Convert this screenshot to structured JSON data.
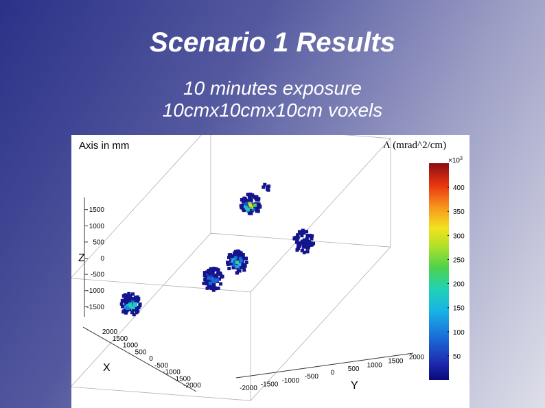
{
  "slide": {
    "title": "Scenario 1 Results",
    "subtitle_lines": [
      "10 minutes exposure",
      "10cmx10cmx10cm voxels"
    ]
  },
  "chart_data": {
    "type": "scatter3d",
    "axis_note": "Axis in mm",
    "color_title": "Λ (mrad^2/cm)",
    "color_multiplier": "×10",
    "color_multiplier_exp": "3",
    "x_axis": {
      "label": "X",
      "ticks": [
        2000,
        1500,
        1000,
        500,
        0,
        -500,
        -1000,
        -1500,
        -2000
      ],
      "range": [
        -2000,
        2000
      ]
    },
    "y_axis": {
      "label": "Y",
      "ticks": [
        -2000,
        -1500,
        -1000,
        -500,
        0,
        500,
        1000,
        1500,
        2000
      ],
      "range": [
        -2000,
        2000
      ]
    },
    "z_axis": {
      "label": "Z",
      "ticks": [
        1500,
        1000,
        500,
        0,
        -500,
        -1000,
        -1500
      ],
      "range": [
        -1800,
        1800
      ]
    },
    "colorbar": {
      "min": 0,
      "max": 450,
      "ticks": [
        50,
        100,
        150,
        200,
        250,
        300,
        350,
        400
      ]
    },
    "clusters": [
      {
        "x": 1200,
        "y": -1300,
        "z": 0,
        "peak": 190
      },
      {
        "x": 0,
        "y": -400,
        "z": -600,
        "peak": 90
      },
      {
        "x": 200,
        "y": 300,
        "z": 300,
        "peak": 210
      },
      {
        "x": -700,
        "y": -100,
        "z": 1000,
        "peak": 300
      },
      {
        "x": -800,
        "y": 1000,
        "z": -200,
        "peak": 50
      },
      {
        "x": -500,
        "y": 400,
        "z": 1900,
        "peak": 40
      }
    ]
  },
  "colors": {
    "box_edge": "#b0b0b0",
    "voxel_base": "#14148c"
  }
}
